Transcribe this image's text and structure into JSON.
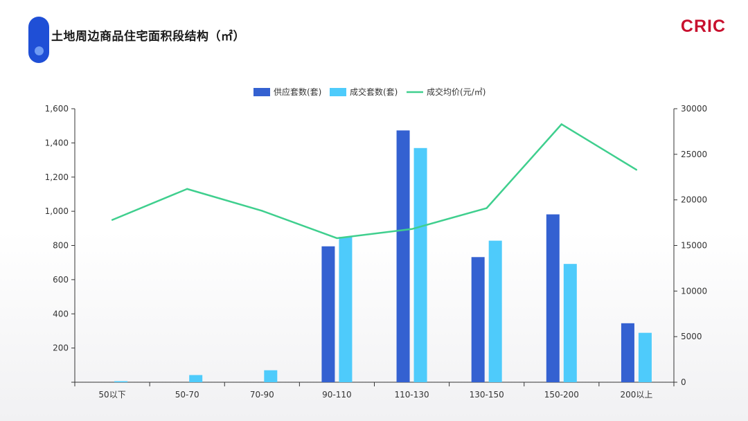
{
  "header": {
    "title": "土地周边商品住宅面积段结构（㎡）",
    "logo": "CRIC"
  },
  "colors": {
    "supply": "#3461d1",
    "deal": "#4ecbfb",
    "price": "#3fcf8e",
    "badge": "#1f4fd6",
    "logo": "#c8102e"
  },
  "chart_data": {
    "type": "bar",
    "categories": [
      "50以下",
      "50-70",
      "70-90",
      "90-110",
      "110-130",
      "130-150",
      "150-200",
      "200以上"
    ],
    "series": [
      {
        "name": "供应套数(套)",
        "type": "bar",
        "axis": "left",
        "values": [
          0,
          0,
          0,
          795,
          1473,
          732,
          982,
          345
        ]
      },
      {
        "name": "成交套数(套)",
        "type": "bar",
        "axis": "left",
        "values": [
          5,
          42,
          70,
          850,
          1370,
          828,
          692,
          289
        ]
      },
      {
        "name": "成交均价(元/㎡)",
        "type": "line",
        "axis": "right",
        "values": [
          17800,
          21200,
          18800,
          15800,
          16800,
          19100,
          28300,
          23300
        ]
      }
    ],
    "y_left": {
      "min": 0,
      "max": 1600,
      "ticks": [
        "1,600",
        "1,400",
        "1,200",
        "1,000",
        "800",
        "600",
        "400",
        "200"
      ]
    },
    "y_right": {
      "min": 0,
      "max": 30000,
      "ticks": [
        "30000",
        "25000",
        "20000",
        "15000",
        "10000",
        "5000",
        "0"
      ]
    },
    "legend_position": "top-center",
    "grid": false
  }
}
